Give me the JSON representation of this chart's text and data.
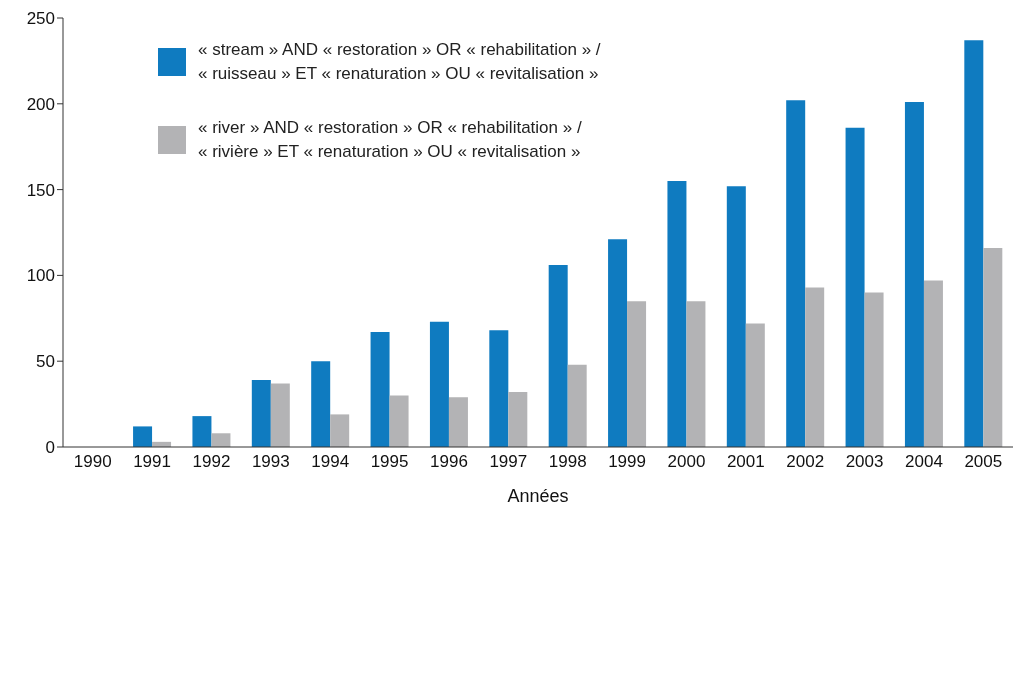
{
  "chart_data": {
    "type": "bar",
    "xlabel": "Années",
    "categories": [
      "1990",
      "1991",
      "1992",
      "1993",
      "1994",
      "1995",
      "1996",
      "1997",
      "1998",
      "1999",
      "2000",
      "2001",
      "2002",
      "2003",
      "2004",
      "2005"
    ],
    "series": [
      {
        "name": "« stream » AND « restoration » OR « rehabilitation » / « ruisseau » ET « renaturation » OU « revitalisation »",
        "color": "#0f7bc0",
        "values": [
          0,
          12,
          18,
          39,
          50,
          67,
          73,
          68,
          106,
          121,
          155,
          152,
          202,
          186,
          201,
          237
        ]
      },
      {
        "name": "« river » AND « restoration » OR « rehabilitation » / « rivière » ET « renaturation » OU « revitalisation »",
        "color": "#b3b3b5",
        "values": [
          0,
          3,
          8,
          37,
          19,
          30,
          29,
          32,
          48,
          85,
          85,
          72,
          93,
          90,
          97,
          116
        ]
      }
    ],
    "ylim": [
      0,
      250
    ],
    "yticks": [
      0,
      50,
      100,
      150,
      200,
      250
    ],
    "grid": false,
    "legend": "top left"
  }
}
